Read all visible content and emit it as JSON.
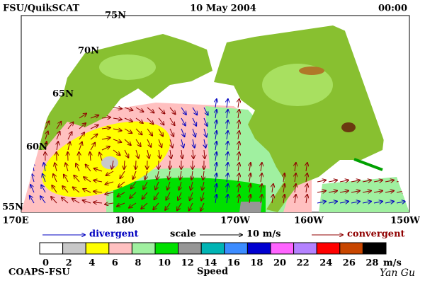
{
  "header": {
    "left": "FSU/QuikSCAT",
    "date": "10 May 2004",
    "time": "00:00"
  },
  "lat_labels": [
    "75N",
    "70N",
    "65N",
    "60N",
    "55N"
  ],
  "lon_labels": [
    "170E",
    "180",
    "170W",
    "160W",
    "150W"
  ],
  "legend": {
    "divergent": "divergent",
    "scale": "scale",
    "scale_value": "10 m/s",
    "convergent": "convergent"
  },
  "colorbar": {
    "ticks": [
      0,
      2,
      4,
      6,
      8,
      10,
      12,
      14,
      16,
      18,
      20,
      22,
      24,
      26,
      28
    ],
    "unit": "m/s",
    "label": "Speed",
    "colors": [
      "#ffffff",
      "#c8c8c8",
      "#ffff00",
      "#ffc0c0",
      "#a0f0a0",
      "#00e000",
      "#969696",
      "#00b4b4",
      "#3c8cff",
      "#0000d0",
      "#ff64ff",
      "#b482ff",
      "#ff0000",
      "#c84600",
      "#000000"
    ]
  },
  "footer": {
    "left": "COAPS-FSU",
    "author": "Yan Gu"
  }
}
